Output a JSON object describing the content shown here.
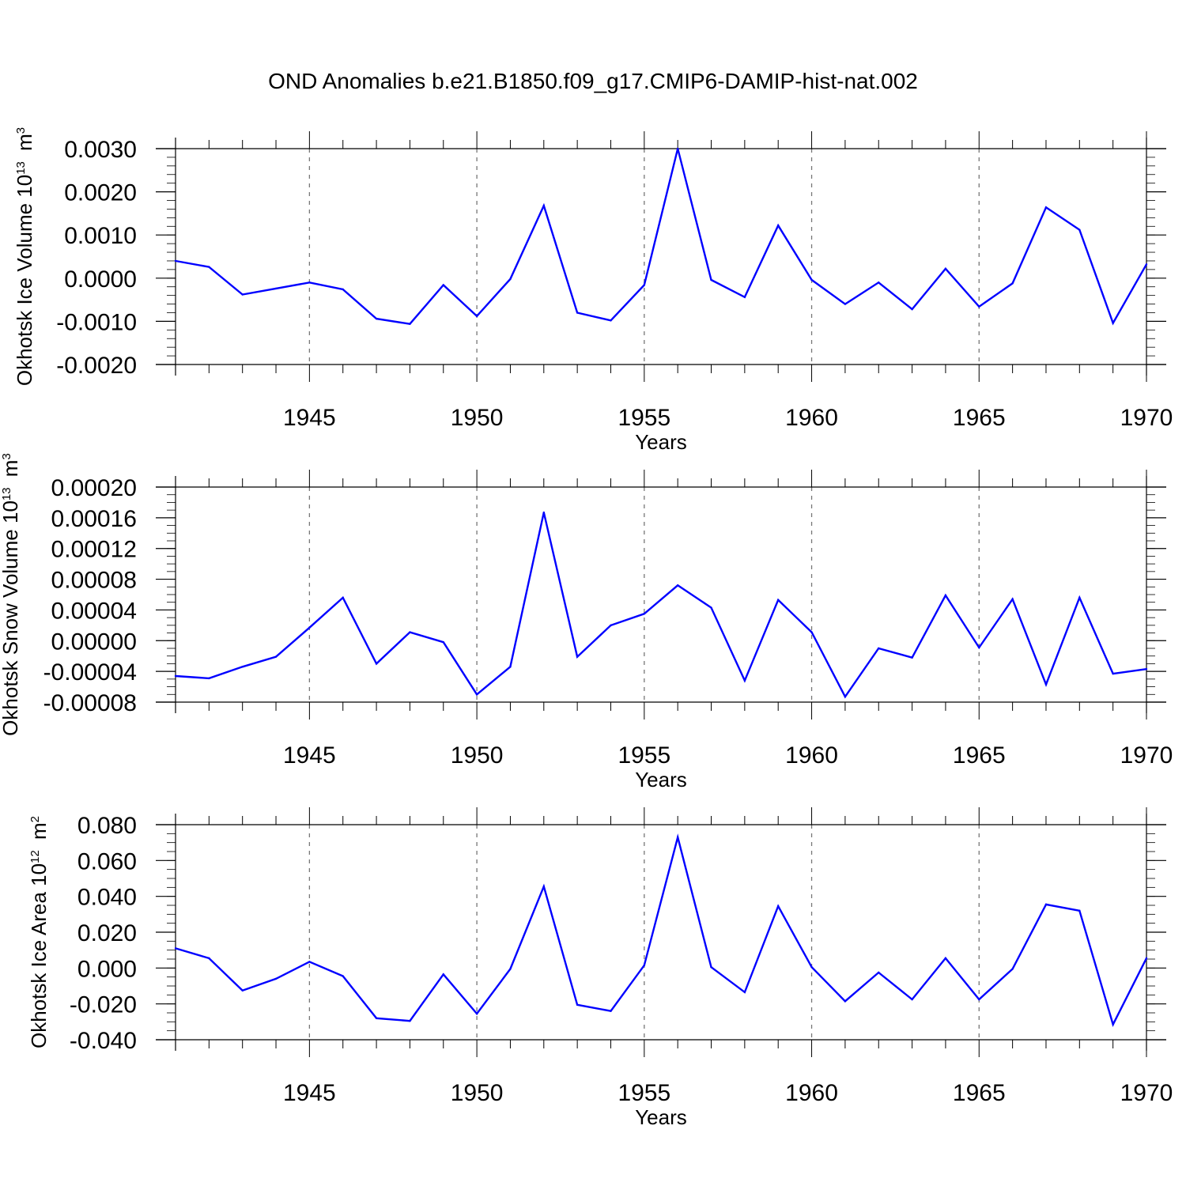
{
  "title": "OND Anomalies b.e21.B1850.f09_g17.CMIP6-DAMIP-hist-nat.002",
  "chart_data": [
    {
      "type": "line",
      "xlabel": "Years",
      "ylabel_text": "Okhotsk Ice Volume 10",
      "ylabel_exp": "13",
      "ylabel_unit": "m",
      "ylabel_unit_exp": "3",
      "xlim": [
        1941,
        1970
      ],
      "ylim": [
        -0.002,
        0.003
      ],
      "yticks": [
        -0.002,
        -0.001,
        0,
        0.001,
        0.002,
        0.003
      ],
      "ytick_labels": [
        "-0.0020",
        "-0.0010",
        "0.0000",
        "0.0010",
        "0.0020",
        "0.0030"
      ],
      "yminor_step": 0.0002,
      "xticks": [
        1945,
        1950,
        1955,
        1960,
        1965,
        1970
      ],
      "xtick_labels": [
        "1945",
        "1950",
        "1955",
        "1960",
        "1965",
        "1970"
      ],
      "grid_x": true,
      "line_color": "#0000ff",
      "x": [
        1941,
        1942,
        1943,
        1944,
        1945,
        1946,
        1947,
        1948,
        1949,
        1950,
        1951,
        1952,
        1953,
        1954,
        1955,
        1956,
        1957,
        1958,
        1959,
        1960,
        1961,
        1962,
        1963,
        1964,
        1965,
        1966,
        1967,
        1968,
        1969,
        1970
      ],
      "values": [
        0.0004,
        0.00026,
        -0.00038,
        -0.00024,
        -0.0001,
        -0.00026,
        -0.00094,
        -0.00106,
        -0.00016,
        -0.00088,
        -2e-05,
        0.00168,
        -0.0008,
        -0.00098,
        -0.00016,
        0.003,
        -4e-05,
        -0.00044,
        0.00122,
        -4e-05,
        -0.0006,
        -0.0001,
        -0.00072,
        0.00022,
        -0.00066,
        -0.00012,
        0.00164,
        0.00112,
        -0.00104,
        0.00032
      ]
    },
    {
      "type": "line",
      "xlabel": "Years",
      "ylabel_text": "Okhotsk Snow Volume 10",
      "ylabel_exp": "13",
      "ylabel_unit": "m",
      "ylabel_unit_exp": "3",
      "xlim": [
        1941,
        1970
      ],
      "ylim": [
        -8e-05,
        0.0002
      ],
      "yticks": [
        -8e-05,
        -4e-05,
        0,
        4e-05,
        8e-05,
        0.00012,
        0.00016,
        0.0002
      ],
      "ytick_labels": [
        "-0.00008",
        "-0.00004",
        "0.00000",
        "0.00004",
        "0.00008",
        "0.00012",
        "0.00016",
        "0.00020"
      ],
      "yminor_step": 1e-05,
      "xticks": [
        1945,
        1950,
        1955,
        1960,
        1965,
        1970
      ],
      "xtick_labels": [
        "1945",
        "1950",
        "1955",
        "1960",
        "1965",
        "1970"
      ],
      "grid_x": true,
      "line_color": "#0000ff",
      "x": [
        1941,
        1942,
        1943,
        1944,
        1945,
        1946,
        1947,
        1948,
        1949,
        1950,
        1951,
        1952,
        1953,
        1954,
        1955,
        1956,
        1957,
        1958,
        1959,
        1960,
        1961,
        1962,
        1963,
        1964,
        1965,
        1966,
        1967,
        1968,
        1969,
        1970
      ],
      "values": [
        -4.6e-05,
        -4.9e-05,
        -3.4e-05,
        -2.1e-05,
        1.7e-05,
        5.6e-05,
        -3e-05,
        1.1e-05,
        -2e-06,
        -7e-05,
        -3.4e-05,
        0.000167,
        -2.1e-05,
        2e-05,
        3.5e-05,
        7.2e-05,
        4.3e-05,
        -5.2e-05,
        5.3e-05,
        1.1e-05,
        -7.3e-05,
        -1e-05,
        -2.2e-05,
        5.9e-05,
        -9e-06,
        5.4e-05,
        -5.7e-05,
        5.6e-05,
        -4.3e-05,
        -3.7e-05
      ]
    },
    {
      "type": "line",
      "xlabel": "Years",
      "ylabel_text": "Okhotsk Ice Area 10",
      "ylabel_exp": "12",
      "ylabel_unit": "m",
      "ylabel_unit_exp": "2",
      "xlim": [
        1941,
        1970
      ],
      "ylim": [
        -0.04,
        0.08
      ],
      "yticks": [
        -0.04,
        -0.02,
        0,
        0.02,
        0.04,
        0.06,
        0.08
      ],
      "ytick_labels": [
        "-0.040",
        "-0.020",
        "0.000",
        "0.020",
        "0.040",
        "0.060",
        "0.080"
      ],
      "yminor_step": 0.005,
      "xticks": [
        1945,
        1950,
        1955,
        1960,
        1965,
        1970
      ],
      "xtick_labels": [
        "1945",
        "1950",
        "1955",
        "1960",
        "1965",
        "1970"
      ],
      "grid_x": true,
      "line_color": "#0000ff",
      "x": [
        1941,
        1942,
        1943,
        1944,
        1945,
        1946,
        1947,
        1948,
        1949,
        1950,
        1951,
        1952,
        1953,
        1954,
        1955,
        1956,
        1957,
        1958,
        1959,
        1960,
        1961,
        1962,
        1963,
        1964,
        1965,
        1966,
        1967,
        1968,
        1969,
        1970
      ],
      "values": [
        0.011,
        0.0055,
        -0.0125,
        -0.006,
        0.0035,
        -0.0045,
        -0.028,
        -0.0295,
        -0.0035,
        -0.0255,
        -0.0005,
        0.0455,
        -0.0205,
        -0.024,
        0.0015,
        0.073,
        0.0005,
        -0.0135,
        0.0345,
        0.0005,
        -0.0185,
        -0.0025,
        -0.0175,
        0.0055,
        -0.0175,
        -0.0005,
        0.0355,
        0.032,
        -0.0315,
        0.0055
      ]
    }
  ]
}
